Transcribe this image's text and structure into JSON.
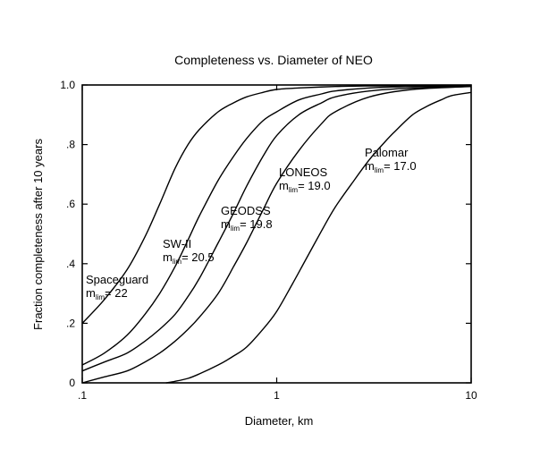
{
  "chart_data": {
    "type": "line",
    "title": "Completeness vs. Diameter of NEO",
    "xlabel": "Diameter, km",
    "ylabel": "Fraction completeness after 10 years",
    "x_scale": "log",
    "xlim": [
      0.1,
      10
    ],
    "ylim": [
      0,
      1
    ],
    "x_ticks": [
      {
        "value": 0.1,
        "label": ".1"
      },
      {
        "value": 1,
        "label": "1"
      },
      {
        "value": 10,
        "label": "10"
      }
    ],
    "y_ticks": [
      {
        "value": 0,
        "label": "0"
      },
      {
        "value": 0.2,
        "label": ".2"
      },
      {
        "value": 0.4,
        "label": ".4"
      },
      {
        "value": 0.6,
        "label": ".6"
      },
      {
        "value": 0.8,
        "label": ".8"
      },
      {
        "value": 1.0,
        "label": "1.0"
      }
    ],
    "grid": false,
    "series": [
      {
        "name": "Spaceguard",
        "label_sub": "= 22",
        "x": [
          0.1,
          0.13,
          0.17,
          0.21,
          0.25,
          0.3,
          0.35,
          0.4,
          0.5,
          0.6,
          0.7,
          0.85,
          1.0,
          1.3,
          2,
          3,
          5,
          10
        ],
        "y": [
          0.2,
          0.28,
          0.38,
          0.49,
          0.6,
          0.72,
          0.8,
          0.85,
          0.91,
          0.94,
          0.96,
          0.975,
          0.985,
          0.99,
          0.995,
          0.997,
          0.998,
          0.999
        ]
      },
      {
        "name": "SW-II",
        "label_sub": "= 20.5",
        "x": [
          0.1,
          0.13,
          0.17,
          0.21,
          0.25,
          0.3,
          0.35,
          0.4,
          0.5,
          0.6,
          0.7,
          0.85,
          1.0,
          1.3,
          1.7,
          2,
          3,
          5,
          10
        ],
        "y": [
          0.06,
          0.1,
          0.16,
          0.23,
          0.3,
          0.39,
          0.48,
          0.56,
          0.68,
          0.76,
          0.82,
          0.88,
          0.91,
          0.95,
          0.97,
          0.98,
          0.99,
          0.995,
          0.998
        ]
      },
      {
        "name": "GEODSS",
        "label_sub": "= 19.8",
        "x": [
          0.1,
          0.13,
          0.17,
          0.21,
          0.25,
          0.3,
          0.35,
          0.4,
          0.5,
          0.6,
          0.7,
          0.85,
          1.0,
          1.3,
          1.7,
          2,
          3,
          5,
          10
        ],
        "y": [
          0.04,
          0.07,
          0.1,
          0.14,
          0.18,
          0.23,
          0.29,
          0.35,
          0.47,
          0.57,
          0.66,
          0.76,
          0.83,
          0.9,
          0.94,
          0.96,
          0.98,
          0.99,
          0.995
        ]
      },
      {
        "name": "LONEOS",
        "label_sub": "= 19.0",
        "x": [
          0.1,
          0.13,
          0.17,
          0.21,
          0.25,
          0.3,
          0.35,
          0.4,
          0.5,
          0.6,
          0.7,
          0.85,
          1.0,
          1.3,
          1.7,
          2,
          3,
          5,
          10
        ],
        "y": [
          0.0,
          0.02,
          0.04,
          0.07,
          0.1,
          0.14,
          0.18,
          0.22,
          0.3,
          0.39,
          0.47,
          0.58,
          0.67,
          0.78,
          0.87,
          0.91,
          0.96,
          0.985,
          0.995
        ]
      },
      {
        "name": "Palomar",
        "label_sub": "= 17.0",
        "x": [
          0.27,
          0.3,
          0.35,
          0.4,
          0.5,
          0.6,
          0.7,
          0.85,
          1.0,
          1.2,
          1.4,
          1.7,
          2.0,
          2.5,
          3.0,
          3.5,
          4,
          5,
          6,
          7,
          8,
          10
        ],
        "y": [
          0.0,
          0.005,
          0.015,
          0.03,
          0.06,
          0.09,
          0.12,
          0.18,
          0.24,
          0.33,
          0.41,
          0.51,
          0.59,
          0.68,
          0.75,
          0.8,
          0.84,
          0.9,
          0.93,
          0.95,
          0.965,
          0.975
        ]
      }
    ]
  }
}
